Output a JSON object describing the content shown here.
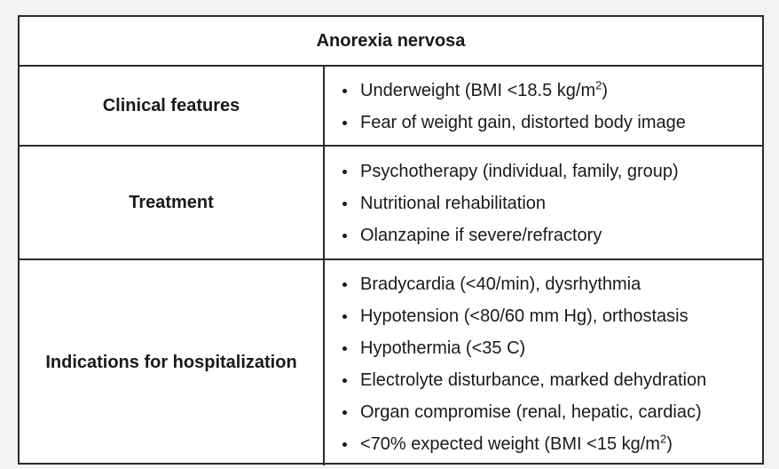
{
  "table": {
    "title": "Anorexia nervosa",
    "rows": [
      {
        "label": "Clinical features",
        "items": [
          {
            "text": "Underweight (BMI <18.5 kg/m",
            "sup": "2",
            "suffix": ")"
          },
          {
            "text": "Fear of weight gain, distorted body image"
          }
        ]
      },
      {
        "label": "Treatment",
        "items": [
          {
            "text": "Psychotherapy (individual, family, group)"
          },
          {
            "text": "Nutritional rehabilitation"
          },
          {
            "text": "Olanzapine if severe/refractory"
          }
        ]
      },
      {
        "label": "Indications for hospitalization",
        "items": [
          {
            "text": "Bradycardia (<40/min), dysrhythmia"
          },
          {
            "text": "Hypotension (<80/60 mm Hg), orthostasis"
          },
          {
            "text": "Hypothermia (<35 C)"
          },
          {
            "text": "Electrolyte disturbance, marked dehydration"
          },
          {
            "text": "Organ compromise (renal, hepatic, cardiac)"
          },
          {
            "text": "<70% expected weight (BMI <15 kg/m",
            "sup": "2",
            "suffix": ")"
          }
        ]
      }
    ]
  }
}
